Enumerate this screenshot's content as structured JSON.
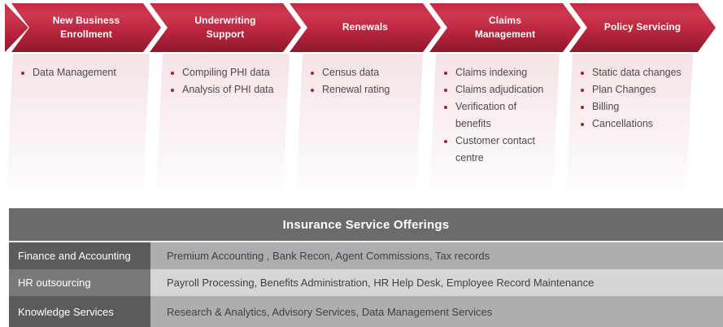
{
  "process_flow": {
    "stages": [
      {
        "title": "New Business Enrollment",
        "items": [
          "Data Management"
        ]
      },
      {
        "title": "Underwriting Support",
        "items": [
          "Compiling PHI data",
          "Analysis of PHI data"
        ]
      },
      {
        "title": "Renewals",
        "items": [
          "Census data",
          "Renewal rating"
        ]
      },
      {
        "title": "Claims Management",
        "items": [
          "Claims indexing",
          "Claims adjudication",
          "Verification of benefits",
          "Customer contact centre"
        ]
      },
      {
        "title": "Policy Servicing",
        "items": [
          "Static data changes",
          "Plan Changes",
          "Billing",
          "Cancellations"
        ]
      }
    ]
  },
  "offerings_table": {
    "title": "Insurance Service Offerings",
    "rows": [
      {
        "category": "Finance and Accounting",
        "services": "Premium Accounting , Bank Recon, Agent Commissions, Tax records"
      },
      {
        "category": "HR outsourcing",
        "services": "Payroll Processing, Benefits Administration, HR Help Desk, Employee Record Maintenance"
      },
      {
        "category": "Knowledge Services",
        "services": "Research & Analytics, Advisory Services, Data Management Services"
      }
    ]
  },
  "colors": {
    "chevron-red-top": "#c52942",
    "chevron-red-bottom": "#8f1a2d",
    "panel-pink": "#f6e3e6",
    "bullet-red": "#9e2134",
    "table-header-gray": "#696b6d",
    "category-gray-dark": "#595b5d",
    "category-gray-light": "#77797b",
    "value-gray-dark": "#acaeb0",
    "value-gray-light": "#d6d6d8"
  }
}
